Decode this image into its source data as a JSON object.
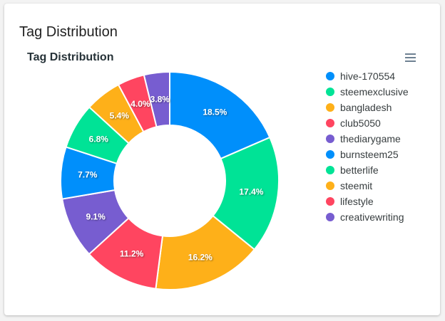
{
  "card": {
    "title": "Tag Distribution"
  },
  "chart_data": {
    "type": "pie",
    "variant": "donut",
    "title": "Tag Distribution",
    "labels": [
      "hive-170554",
      "steemexclusive",
      "bangladesh",
      "club5050",
      "thediarygame",
      "burnsteem25",
      "betterlife",
      "steemit",
      "lifestyle",
      "creativewriting"
    ],
    "values": [
      18.5,
      17.4,
      16.2,
      11.2,
      9.1,
      7.7,
      6.8,
      5.4,
      4.0,
      3.8
    ],
    "data_labels": [
      "18.5%",
      "17.4%",
      "16.2%",
      "11.2%",
      "9.1%",
      "7.7%",
      "6.8%",
      "5.4%",
      "4.0%",
      "3.8%"
    ],
    "colors": [
      "#008ffb",
      "#00e396",
      "#feb019",
      "#ff4560",
      "#775dd0",
      "#008ffb",
      "#00e396",
      "#feb019",
      "#ff4560",
      "#775dd0"
    ],
    "legend_position": "right"
  },
  "toolbar": {
    "menu_icon": "hamburger-menu-icon"
  }
}
